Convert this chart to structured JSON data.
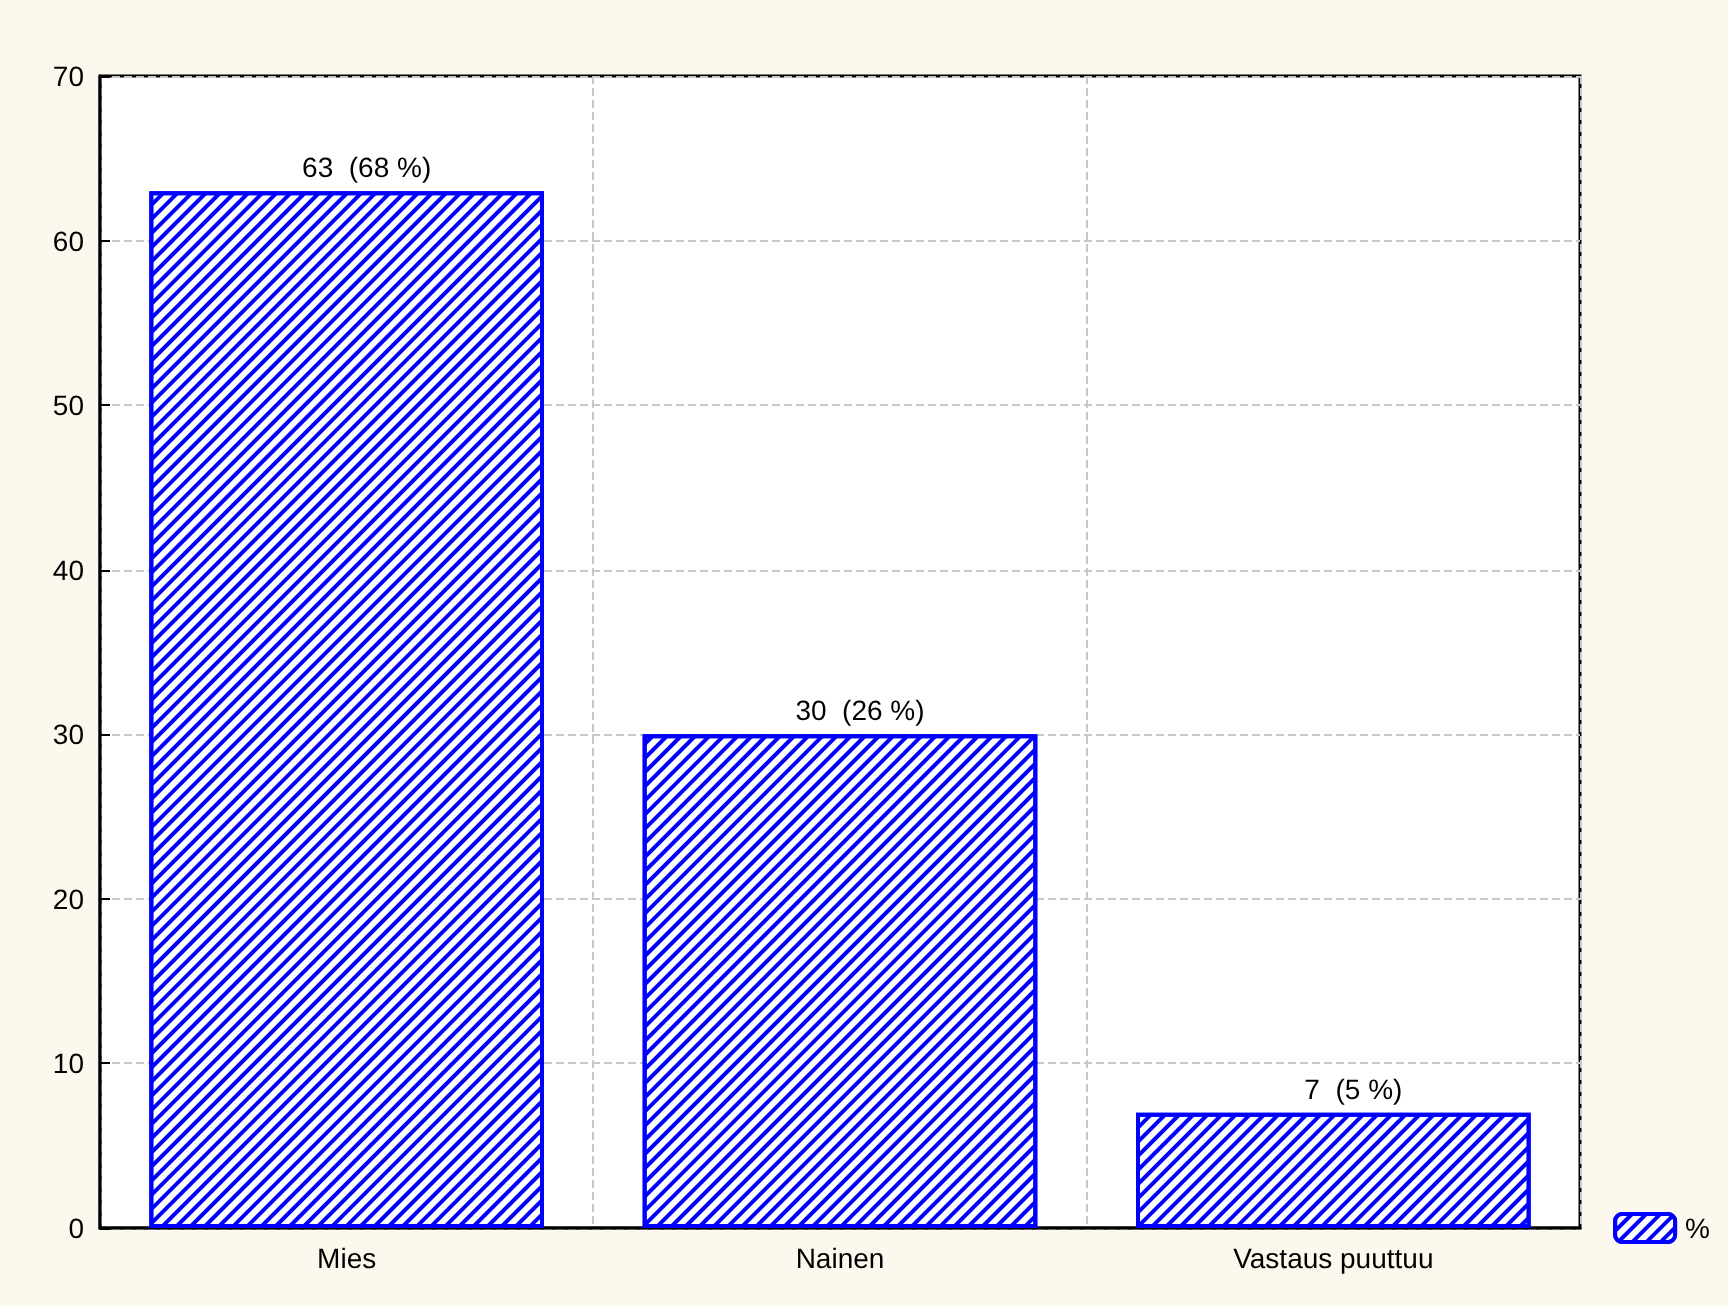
{
  "chart_data": {
    "type": "bar",
    "categories": [
      "Mies",
      "Nainen",
      "Vastaus puuttuu"
    ],
    "series": [
      {
        "name": "%",
        "color": "#0000ff",
        "values": [
          63,
          30,
          7
        ],
        "value_labels": [
          "63  (68 %)",
          "30  (26 %)",
          "7  (5 %)"
        ]
      }
    ],
    "ylim": [
      0,
      70
    ],
    "yticks": [
      0,
      10,
      20,
      30,
      40,
      50,
      60,
      70
    ],
    "grid": true,
    "legend": "bottom right"
  }
}
